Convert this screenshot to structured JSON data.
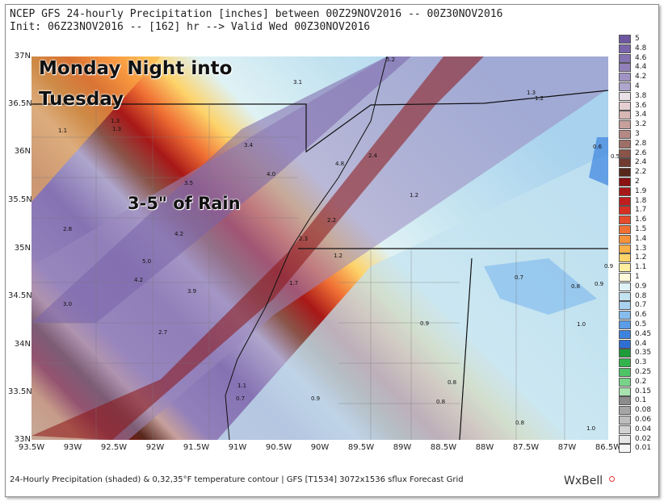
{
  "header": {
    "line1": "NCEP GFS 24-hourly Precipitation [inches] between 00Z29NOV2016 -- 00Z30NOV2016",
    "line2": "Init: 06Z23NOV2016 -- [162] hr --> Valid Wed 00Z30NOV2016"
  },
  "overlay": {
    "line1": "Monday Night into",
    "line2": "Tuesday",
    "callout": "3-5\" of Rain"
  },
  "axes": {
    "lat_labels": [
      "37N",
      "36.5N",
      "36N",
      "35.5N",
      "35N",
      "34.5N",
      "34N",
      "33.5N",
      "33N"
    ],
    "lon_labels": [
      "93.5W",
      "93W",
      "92.5W",
      "92W",
      "91.5W",
      "91W",
      "90.5W",
      "90W",
      "89.5W",
      "89W",
      "88.5W",
      "88W",
      "87.5W",
      "87W",
      "86.5W"
    ]
  },
  "colorbar": {
    "levels": [
      "5",
      "4.8",
      "4.6",
      "4.4",
      "4.2",
      "4",
      "3.8",
      "3.6",
      "3.4",
      "3.2",
      "3",
      "2.8",
      "2.6",
      "2.4",
      "2.2",
      "2",
      "1.9",
      "1.8",
      "1.7",
      "1.6",
      "1.5",
      "1.4",
      "1.3",
      "1.2",
      "1.1",
      "1",
      "0.9",
      "0.8",
      "0.7",
      "0.6",
      "0.5",
      "0.45",
      "0.4",
      "0.35",
      "0.3",
      "0.25",
      "0.2",
      "0.15",
      "0.1",
      "0.08",
      "0.06",
      "0.04",
      "0.02",
      "0.01"
    ],
    "colors": [
      "#6e57a0",
      "#7a64aa",
      "#8572b3",
      "#9280bb",
      "#a093c4",
      "#aea6cc",
      "#e9e1e6",
      "#e6cfd0",
      "#d8b6b4",
      "#c7a09c",
      "#b58983",
      "#9e6f67",
      "#8a5449",
      "#713b30",
      "#58271c",
      "#8b1212",
      "#a81818",
      "#c11f1f",
      "#d63024",
      "#e54c2c",
      "#f07034",
      "#f6923c",
      "#fbb147",
      "#fdd36a",
      "#fdeea0",
      "#fffad9",
      "#dff2f5",
      "#c4e3f0",
      "#a8d2ee",
      "#86bdec",
      "#5b9de6",
      "#3d83de",
      "#2f6fd3",
      "#1f9c3a",
      "#33b34b",
      "#4fc466",
      "#79d48a",
      "#a6e3ae",
      "#8c8c8c",
      "#a5a5a5",
      "#bdbdbd",
      "#d2d2d2",
      "#e6e6e6",
      "#f5f5f5"
    ]
  },
  "values": [
    {
      "t": "1.1"
    },
    {
      "t": "1.3"
    },
    {
      "t": "1.3"
    },
    {
      "t": "3.1"
    },
    {
      "t": "3.4"
    },
    {
      "t": "4.0"
    },
    {
      "t": "3.5"
    },
    {
      "t": "4.8"
    },
    {
      "t": "2.4"
    },
    {
      "t": "1.2"
    },
    {
      "t": "2.8"
    },
    {
      "t": "4.2"
    },
    {
      "t": "5.0"
    },
    {
      "t": "4.2"
    },
    {
      "t": "3.9"
    },
    {
      "t": "2.2"
    },
    {
      "t": "2.3"
    },
    {
      "t": "1.2"
    },
    {
      "t": "1.7"
    },
    {
      "t": "3.0"
    },
    {
      "t": "2.7"
    },
    {
      "t": "0.9"
    },
    {
      "t": "1.0"
    },
    {
      "t": "0.7"
    },
    {
      "t": "0.8"
    },
    {
      "t": "0.9"
    },
    {
      "t": "0.9"
    },
    {
      "t": "1.1"
    },
    {
      "t": "0.7"
    },
    {
      "t": "0.9"
    },
    {
      "t": "0.8"
    },
    {
      "t": "0.8"
    },
    {
      "t": "0.8"
    },
    {
      "t": "1.0"
    },
    {
      "t": "0.6"
    },
    {
      "t": "0.5"
    },
    {
      "t": "1.3"
    },
    {
      "t": "1.2"
    },
    {
      "t": "5.2"
    }
  ],
  "footer": "24-Hourly Precipitation (shaded) & 0,32,35°F temperature contour | GFS [T1534] 3072x1536 sflux Forecast Grid",
  "brand": "WxBell"
}
